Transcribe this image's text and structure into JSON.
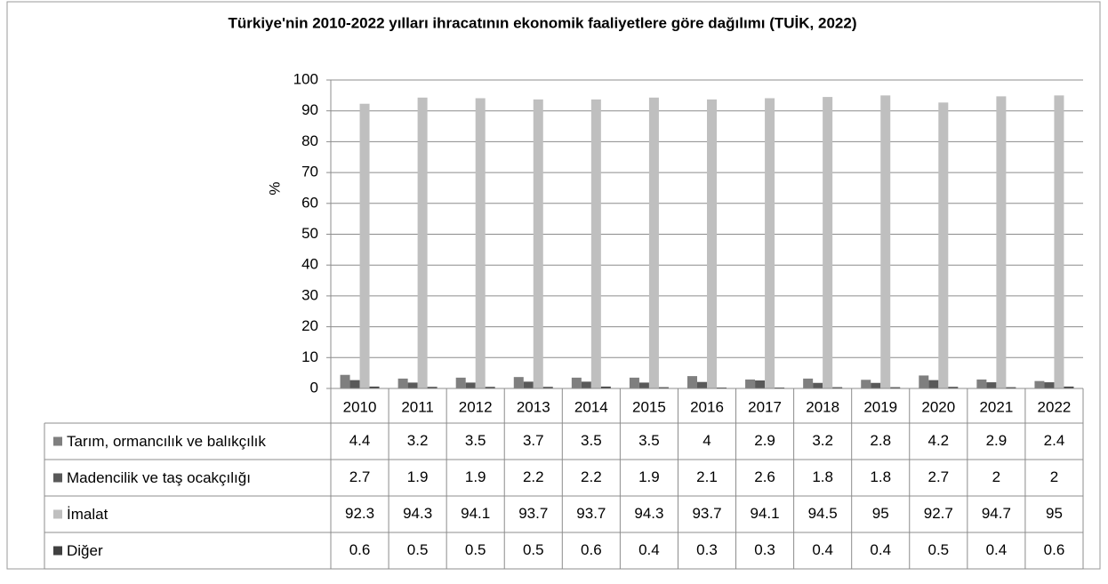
{
  "chart_data": {
    "type": "bar",
    "title": "Türkiye'nin 2010-2022 yılları ihracatının ekonomik faaliyetlere göre dağılımı (TUİK, 2022)",
    "y_label": "%",
    "categories": [
      "2010",
      "2011",
      "2012",
      "2013",
      "2014",
      "2015",
      "2016",
      "2017",
      "2018",
      "2019",
      "2020",
      "2021",
      "2022"
    ],
    "series": [
      {
        "name": "Tarım, ormancılık ve balıkçılık",
        "color": "#7f7f7f",
        "values": [
          4.4,
          3.2,
          3.5,
          3.7,
          3.5,
          3.5,
          4,
          2.9,
          3.2,
          2.8,
          4.2,
          2.9,
          2.4
        ]
      },
      {
        "name": "Madencilik ve taş ocakçılığı",
        "color": "#595959",
        "values": [
          2.7,
          1.9,
          1.9,
          2.2,
          2.2,
          1.9,
          2.1,
          2.6,
          1.8,
          1.8,
          2.7,
          2,
          2
        ]
      },
      {
        "name": "İmalat",
        "color": "#bfbfbf",
        "values": [
          92.3,
          94.3,
          94.1,
          93.7,
          93.7,
          94.3,
          93.7,
          94.1,
          94.5,
          95,
          92.7,
          94.7,
          95
        ]
      },
      {
        "name": "Diğer",
        "color": "#404040",
        "values": [
          0.6,
          0.5,
          0.5,
          0.5,
          0.6,
          0.4,
          0.3,
          0.3,
          0.4,
          0.4,
          0.5,
          0.4,
          0.6
        ]
      }
    ],
    "ylim": [
      0,
      100
    ],
    "yticks": [
      0,
      10,
      20,
      30,
      40,
      50,
      60,
      70,
      80,
      90,
      100
    ],
    "grid": true
  }
}
